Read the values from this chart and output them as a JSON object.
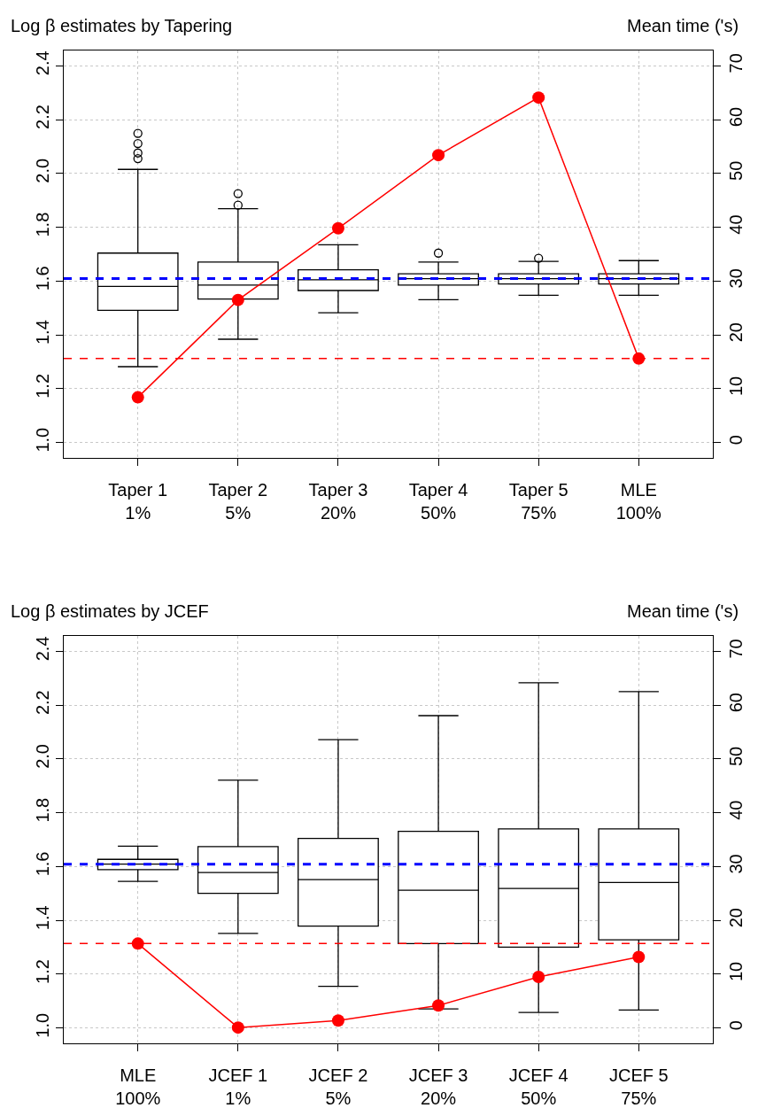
{
  "chart_data": [
    {
      "type": "box",
      "title": "Log β estimates by Tapering",
      "y2label": "Mean time ('s)",
      "categories": [
        "Taper 1\n1%",
        "Taper 2\n5%",
        "Taper 3\n20%",
        "Taper 4\n50%",
        "Taper 5\n75%",
        "MLE\n100%"
      ],
      "boxes": [
        {
          "low": 1.282,
          "q1": 1.491,
          "median": 1.58,
          "q3": 1.704,
          "high": 2.015,
          "outliers": [
            2.149,
            2.111,
            2.076,
            2.055
          ]
        },
        {
          "low": 1.384,
          "q1": 1.533,
          "median": 1.585,
          "q3": 1.671,
          "high": 1.869,
          "outliers": [
            1.925,
            1.882
          ]
        },
        {
          "low": 1.482,
          "q1": 1.565,
          "median": 1.605,
          "q3": 1.642,
          "high": 1.735
        },
        {
          "low": 1.531,
          "q1": 1.585,
          "median": 1.609,
          "q3": 1.627,
          "high": 1.671,
          "outliers": [
            1.704
          ]
        },
        {
          "low": 1.547,
          "q1": 1.589,
          "median": 1.609,
          "q3": 1.627,
          "high": 1.673,
          "outliers": [
            1.685
          ]
        },
        {
          "low": 1.547,
          "q1": 1.589,
          "median": 1.609,
          "q3": 1.627,
          "high": 1.676
        }
      ],
      "series": [
        {
          "type": "line",
          "axis": "y2",
          "color": "#ff0000",
          "marker": "circle",
          "values": [
            8.4,
            26.5,
            39.8,
            53.4,
            64.1,
            15.6
          ]
        }
      ],
      "ylim": [
        0.944,
        2.456
      ],
      "yticks": [
        {
          "value": 1,
          "label": "1.0"
        },
        {
          "value": 1.2,
          "label": "1.2"
        },
        {
          "value": 1.4,
          "label": "1.4"
        },
        {
          "value": 1.6,
          "label": "1.6"
        },
        {
          "value": 1.8,
          "label": "1.8"
        },
        {
          "value": 2,
          "label": "2.0"
        },
        {
          "value": 2.2,
          "label": "2.2"
        },
        {
          "value": 2.4,
          "label": "2.4"
        }
      ],
      "y2lim": [
        -2.8,
        72.8
      ],
      "y2ticks": [
        0,
        10,
        20,
        30,
        40,
        50,
        60,
        70
      ],
      "ref_lines": [
        {
          "axis": "y",
          "value": 1.609,
          "color": "#0000ff",
          "line_style": "dashed"
        },
        {
          "axis": "y2",
          "value": 15.6,
          "color": "#ff0000",
          "line_style": "dashed"
        }
      ],
      "grid": true
    },
    {
      "type": "box",
      "title": "Log β estimates by JCEF",
      "y2label": "Mean time ('s)",
      "categories": [
        "MLE\n100%",
        "JCEF 1\n1%",
        "JCEF 2\n5%",
        "JCEF 3\n20%",
        "JCEF 4\n50%",
        "JCEF 5\n75%"
      ],
      "boxes": [
        {
          "low": 1.545,
          "q1": 1.589,
          "median": 1.609,
          "q3": 1.627,
          "high": 1.676
        },
        {
          "low": 1.352,
          "q1": 1.501,
          "median": 1.578,
          "q3": 1.674,
          "high": 1.921
        },
        {
          "low": 1.155,
          "q1": 1.379,
          "median": 1.552,
          "q3": 1.705,
          "high": 2.072
        },
        {
          "low": 1.071,
          "q1": 1.314,
          "median": 1.512,
          "q3": 1.731,
          "high": 2.161
        },
        {
          "low": 1.058,
          "q1": 1.301,
          "median": 1.519,
          "q3": 1.74,
          "high": 2.283
        },
        {
          "low": 1.067,
          "q1": 1.328,
          "median": 1.541,
          "q3": 1.74,
          "high": 2.25
        }
      ],
      "series": [
        {
          "type": "line",
          "axis": "y2",
          "color": "#ff0000",
          "marker": "circle",
          "values": [
            15.7,
            0.1,
            1.4,
            4.2,
            9.5,
            13.2
          ]
        }
      ],
      "ylim": [
        0.944,
        2.456
      ],
      "yticks": [
        {
          "value": 1,
          "label": "1.0"
        },
        {
          "value": 1.2,
          "label": "1.2"
        },
        {
          "value": 1.4,
          "label": "1.4"
        },
        {
          "value": 1.6,
          "label": "1.6"
        },
        {
          "value": 1.8,
          "label": "1.8"
        },
        {
          "value": 2,
          "label": "2.0"
        },
        {
          "value": 2.2,
          "label": "2.2"
        },
        {
          "value": 2.4,
          "label": "2.4"
        }
      ],
      "y2lim": [
        -2.8,
        72.8
      ],
      "y2ticks": [
        0,
        10,
        20,
        30,
        40,
        50,
        60,
        70
      ],
      "ref_lines": [
        {
          "axis": "y",
          "value": 1.609,
          "color": "#0000ff",
          "line_style": "dashed"
        },
        {
          "axis": "y2",
          "value": 15.7,
          "color": "#ff0000",
          "line_style": "dashed"
        }
      ],
      "grid": true
    }
  ]
}
